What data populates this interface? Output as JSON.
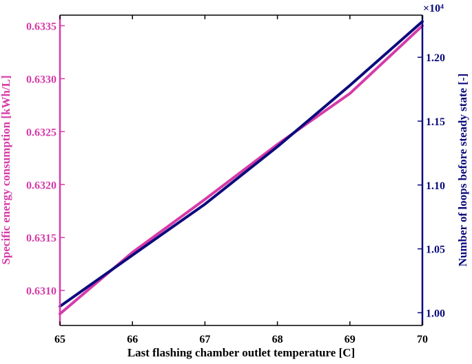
{
  "chart_data": {
    "type": "line",
    "title": "",
    "xlabel": "Last flashing chamber outlet temperature [C]",
    "xlim": [
      65,
      70
    ],
    "xticks": [
      "65",
      "66",
      "67",
      "68",
      "69",
      "70"
    ],
    "y_left": {
      "label": "Specific energy consumption [kWh/L]",
      "color": "#d63aa8",
      "lim": [
        0.63067,
        0.6336
      ],
      "ticks": [
        "0.6310",
        "0.6315",
        "0.6320",
        "0.6325",
        "0.6330",
        "0.6335"
      ]
    },
    "y_right": {
      "label": "Number of loops before steady state [-]",
      "color": "#0b0b7c",
      "lim": [
        0.99,
        1.233
      ],
      "ticks": [
        "1.00",
        "1.05",
        "1.10",
        "1.15",
        "1.20"
      ],
      "multiplier": "×10⁴"
    },
    "series": [
      {
        "axis": "left",
        "color": "#d63aa8",
        "x": [
          65,
          66,
          67,
          68,
          69,
          70
        ],
        "y": [
          0.63078,
          0.63136,
          0.63186,
          0.63238,
          0.63286,
          0.6335
        ]
      },
      {
        "axis": "right",
        "color": "#0b0b7c",
        "x": [
          65,
          66,
          67,
          68,
          69,
          70
        ],
        "y": [
          1.005,
          1.045,
          1.085,
          1.13,
          1.178,
          1.228
        ]
      }
    ],
    "grid": false,
    "legend": "none"
  }
}
